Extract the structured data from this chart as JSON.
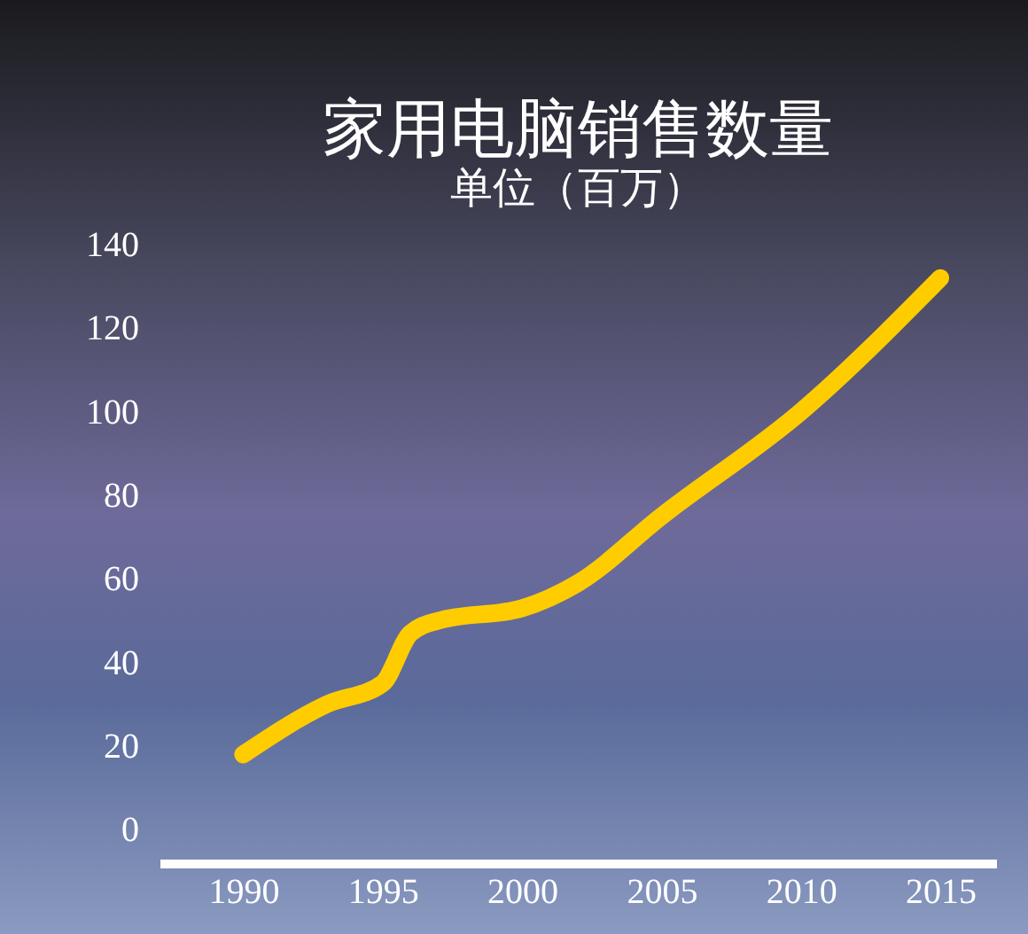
{
  "chart_data": {
    "type": "line",
    "title": "家用电脑销售数量",
    "subtitle": "单位（百万）",
    "x": [
      1990,
      1993,
      1995,
      1996,
      1997,
      2000,
      2002,
      2005,
      2010,
      2015
    ],
    "series": [
      {
        "color": "#ffcc00",
        "values": [
          18,
          30,
          35,
          47,
          50,
          53,
          59,
          75,
          100,
          132
        ]
      }
    ],
    "xlim": [
      1987,
      2017
    ],
    "xticks": [
      1990,
      1995,
      2000,
      2005,
      2010,
      2015
    ],
    "ylim": [
      -8,
      140
    ],
    "yticks": [
      0,
      20,
      40,
      60,
      80,
      100,
      120,
      140
    ],
    "grid": false,
    "marker": "none",
    "line_style": "solid"
  }
}
